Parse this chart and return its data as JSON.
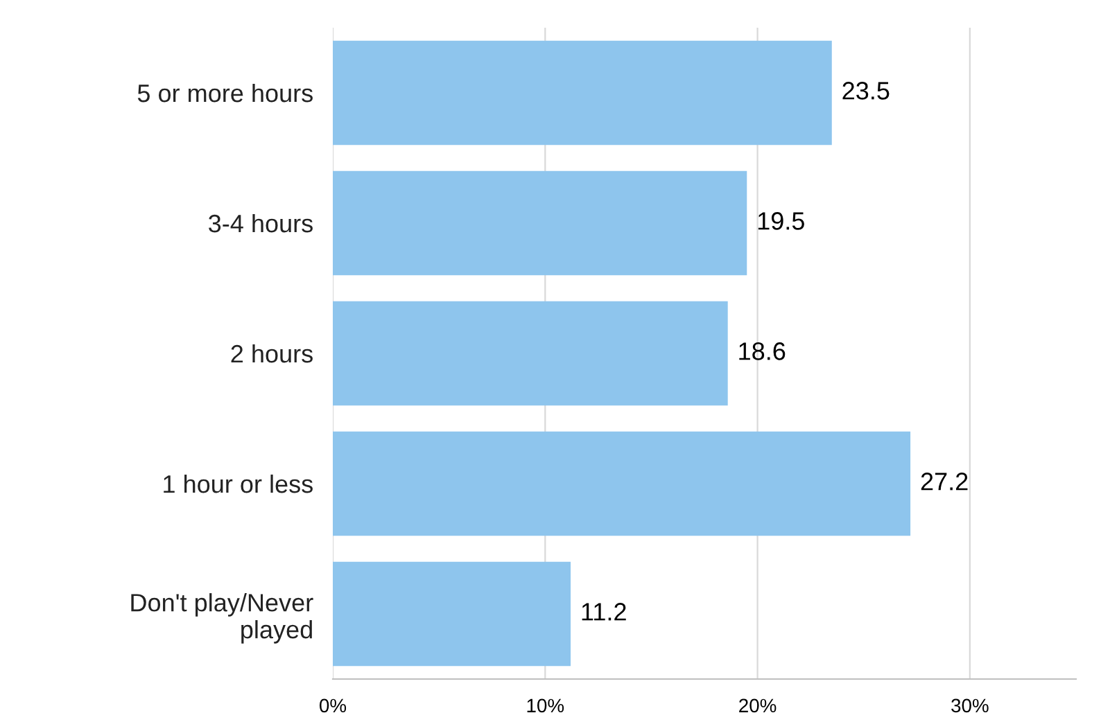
{
  "chart_data": {
    "type": "bar",
    "orientation": "horizontal",
    "categories": [
      "5 or more hours",
      "3-4 hours",
      "2 hours",
      "1 hour or less",
      "Don't play/Never\nplayed"
    ],
    "values": [
      23.5,
      19.5,
      18.6,
      27.2,
      11.2
    ],
    "color": "#8ec5ed",
    "xlim": [
      0,
      35
    ],
    "xticks": [
      {
        "value": 0,
        "label": "0%"
      },
      {
        "value": 10,
        "label": "10%"
      },
      {
        "value": 20,
        "label": "20%"
      },
      {
        "value": 30,
        "label": "30%"
      }
    ],
    "grid": "x",
    "data_labels": true
  }
}
